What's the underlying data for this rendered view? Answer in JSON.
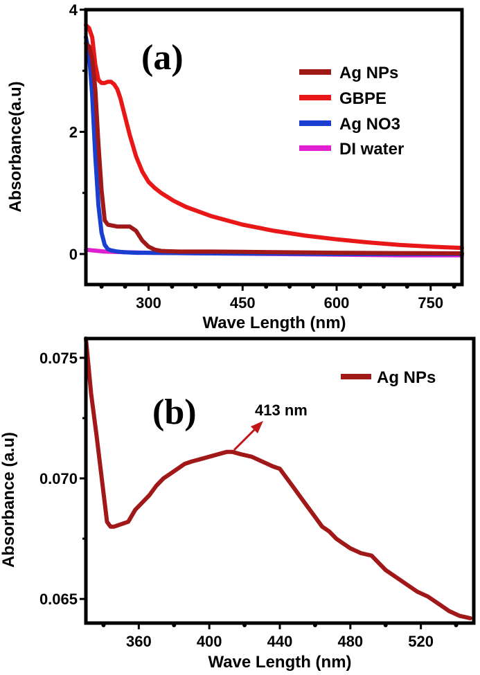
{
  "chart_data": [
    {
      "type": "line",
      "panel_label": "(a)",
      "xlabel": "Wave Length (nm)",
      "ylabel": "Absorbance(a.u)",
      "xlim": [
        200,
        800
      ],
      "ylim": [
        -0.5,
        4.0
      ],
      "xticks": [
        300,
        450,
        600,
        750
      ],
      "yticks": [
        0,
        2,
        4
      ],
      "legend_position": "top-right",
      "series": [
        {
          "name": "Ag NPs",
          "color": "#a01818",
          "x": [
            200,
            205,
            210,
            215,
            220,
            225,
            230,
            235,
            240,
            245,
            250,
            260,
            270,
            280,
            290,
            300,
            310,
            320,
            330,
            350,
            400,
            450,
            500,
            600,
            700,
            800
          ],
          "y": [
            3.45,
            3.4,
            3.2,
            2.7,
            1.8,
            1.05,
            0.55,
            0.48,
            0.47,
            0.46,
            0.45,
            0.45,
            0.45,
            0.38,
            0.22,
            0.12,
            0.07,
            0.05,
            0.045,
            0.04,
            0.04,
            0.035,
            0.03,
            0.02,
            0.015,
            0.01
          ]
        },
        {
          "name": "GBPE",
          "color": "#e81818",
          "x": [
            200,
            205,
            210,
            215,
            220,
            225,
            230,
            235,
            240,
            245,
            250,
            255,
            260,
            270,
            280,
            290,
            300,
            310,
            320,
            340,
            360,
            400,
            450,
            500,
            550,
            600,
            650,
            700,
            750,
            800
          ],
          "y": [
            3.75,
            3.7,
            3.55,
            3.1,
            2.85,
            2.8,
            2.8,
            2.82,
            2.82,
            2.78,
            2.7,
            2.55,
            2.35,
            1.95,
            1.6,
            1.35,
            1.18,
            1.08,
            1.0,
            0.87,
            0.77,
            0.62,
            0.48,
            0.38,
            0.3,
            0.24,
            0.19,
            0.15,
            0.12,
            0.1
          ]
        },
        {
          "name": "Ag NO3",
          "color": "#1a3fd0",
          "x": [
            200,
            205,
            210,
            215,
            220,
            225,
            230,
            235,
            240,
            250,
            260,
            280,
            300,
            400,
            500,
            600,
            800
          ],
          "y": [
            3.55,
            3.3,
            2.6,
            1.6,
            0.8,
            0.35,
            0.15,
            0.08,
            0.06,
            0.04,
            0.03,
            0.02,
            0.02,
            0.01,
            0.005,
            0.0,
            0.0
          ]
        },
        {
          "name": "DI water",
          "color": "#e020d0",
          "x": [
            200,
            210,
            230,
            260,
            300,
            400,
            500,
            600,
            700,
            800
          ],
          "y": [
            0.07,
            0.06,
            0.04,
            0.03,
            0.02,
            0.01,
            0.0,
            -0.01,
            -0.02,
            -0.02
          ]
        }
      ]
    },
    {
      "type": "line",
      "panel_label": "(b)",
      "xlabel": "Wave Length (nm)",
      "ylabel": "Absorbance (a.u)",
      "xlim": [
        330,
        550
      ],
      "ylim": [
        0.064,
        0.0758
      ],
      "xticks": [
        360,
        400,
        440,
        480,
        520
      ],
      "yticks": [
        0.065,
        0.07,
        0.075
      ],
      "ytick_labels": [
        "0.065",
        "0.070",
        "0.075"
      ],
      "legend_position": "top-right",
      "annotation": {
        "text": "413 nm",
        "x": 413,
        "y": 0.0711
      },
      "series": [
        {
          "name": "Ag NPs",
          "color": "#a01818",
          "x": [
            330,
            333,
            336,
            339,
            342,
            344,
            346,
            350,
            354,
            358,
            362,
            366,
            370,
            374,
            378,
            382,
            386,
            390,
            395,
            400,
            405,
            410,
            413,
            418,
            424,
            430,
            436,
            440,
            444,
            448,
            452,
            456,
            460,
            464,
            468,
            472,
            476,
            480,
            486,
            492,
            496,
            500,
            506,
            512,
            518,
            524,
            530,
            536,
            542,
            548
          ],
          "y": [
            0.0758,
            0.0735,
            0.0718,
            0.07,
            0.0682,
            0.068,
            0.068,
            0.0681,
            0.0682,
            0.0687,
            0.069,
            0.0693,
            0.0697,
            0.07,
            0.0702,
            0.0704,
            0.0706,
            0.0707,
            0.0708,
            0.0709,
            0.071,
            0.0711,
            0.0711,
            0.071,
            0.0709,
            0.0707,
            0.0705,
            0.0704,
            0.07,
            0.0696,
            0.0692,
            0.0688,
            0.0684,
            0.068,
            0.0678,
            0.0675,
            0.0673,
            0.0671,
            0.0669,
            0.0668,
            0.0665,
            0.0662,
            0.0659,
            0.0656,
            0.0653,
            0.0651,
            0.0648,
            0.0645,
            0.0643,
            0.0642
          ]
        }
      ]
    }
  ]
}
